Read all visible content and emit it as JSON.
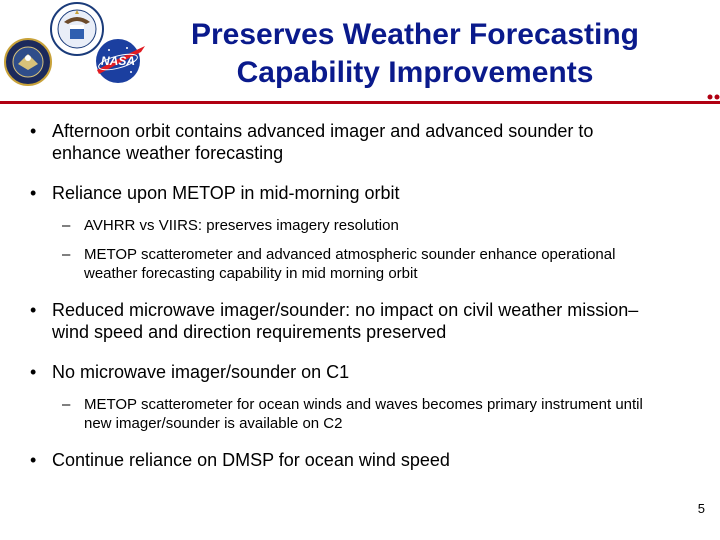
{
  "title": {
    "line1": "Preserves Weather Forecasting",
    "line2": "Capability Improvements"
  },
  "logos": {
    "dod_icon": "dod-seal-icon",
    "commerce_icon": "commerce-seal-icon",
    "nasa_icon": "nasa-logo-icon",
    "nasa_text": "NASA"
  },
  "bullet_symbol": "•",
  "sub_bullet_symbol": "–",
  "bullets": [
    {
      "text": "Afternoon orbit contains advanced imager and advanced sounder to enhance weather forecasting"
    },
    {
      "text": "Reliance upon METOP in mid-morning orbit",
      "sub": [
        "AVHRR vs VIIRS: preserves imagery resolution",
        "METOP scatterometer and advanced atmospheric sounder enhance operational weather forecasting capability in mid morning orbit"
      ]
    },
    {
      "text": "Reduced microwave imager/sounder:  no impact on civil weather mission–wind speed and direction requirements preserved"
    },
    {
      "text": "No microwave imager/sounder on C1",
      "sub": [
        "METOP scatterometer for ocean winds and waves becomes primary instrument until new imager/sounder is available on C2"
      ]
    },
    {
      "text": "Continue reliance on DMSP for ocean wind speed"
    }
  ],
  "page_number": "5",
  "colors": {
    "title": "#0a1a8c",
    "rule": "#b00012"
  }
}
